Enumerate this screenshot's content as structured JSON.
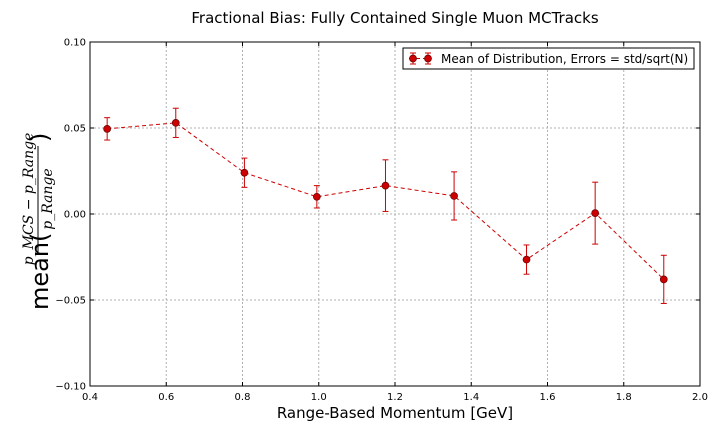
{
  "chart_data": {
    "type": "scatter",
    "title": "Fractional Bias: Fully Contained Single Muon MCTracks",
    "xlabel": "Range-Based Momentum [GeV]",
    "ylabel": {
      "prefix": "mean(",
      "numerator": "p_MCS − p_Range",
      "denominator": "p_Range",
      "suffix": ")"
    },
    "xlim": [
      0.4,
      2.0
    ],
    "ylim": [
      -0.1,
      0.1
    ],
    "xticks": [
      "0.4",
      "0.6",
      "0.8",
      "1.0",
      "1.2",
      "1.4",
      "1.6",
      "1.8",
      "2.0"
    ],
    "yticks": [
      "−0.10",
      "−0.05",
      "0.00",
      "0.05",
      "0.10"
    ],
    "grid": true,
    "legend_position": "top-right",
    "series": [
      {
        "name": "Mean of Distribution, Errors = std/sqrt(N)",
        "color": "#cc0000",
        "line_style": "dashed",
        "marker": "circle",
        "x": [
          0.445,
          0.625,
          0.805,
          0.995,
          1.175,
          1.355,
          1.545,
          1.725,
          1.905
        ],
        "y": [
          0.0495,
          0.053,
          0.024,
          0.01,
          0.0165,
          0.0105,
          -0.0265,
          0.0005,
          -0.038
        ],
        "yerr": [
          0.0065,
          0.0085,
          0.0085,
          0.0065,
          0.015,
          0.014,
          0.0085,
          0.018,
          0.014
        ]
      }
    ]
  }
}
